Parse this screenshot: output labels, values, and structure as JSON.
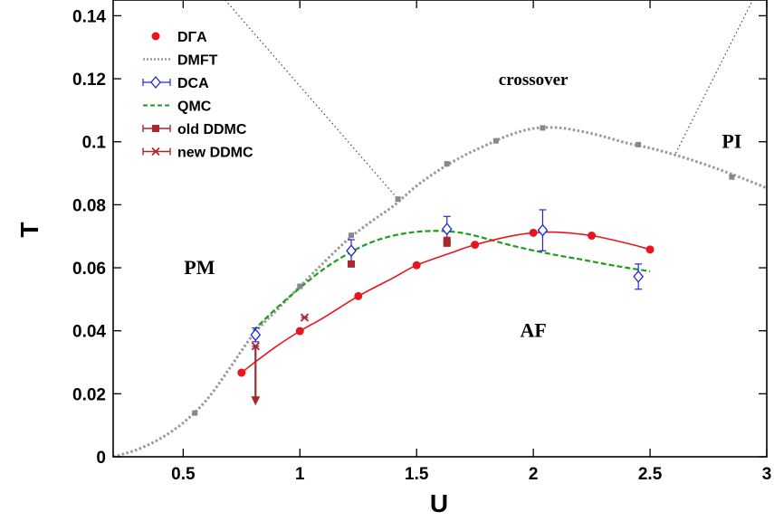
{
  "chart_data": {
    "type": "scatter",
    "title": "",
    "xlabel": "U",
    "ylabel": "T",
    "xlim": [
      0.2,
      3.0
    ],
    "ylim": [
      0,
      0.145
    ],
    "x_ticks": [
      0.5,
      1,
      1.5,
      2,
      2.5,
      3
    ],
    "x_tick_labels": [
      "0.5",
      "1",
      "1.5",
      "2",
      "2.5",
      "3"
    ],
    "y_ticks": [
      0,
      0.02,
      0.04,
      0.06,
      0.08,
      0.1,
      0.12,
      0.14
    ],
    "y_tick_labels": [
      "0",
      "0.02",
      "0.04",
      "0.06",
      "0.08",
      "0.1",
      "0.12",
      "0.14"
    ],
    "grid": false,
    "legend_position": "top-left",
    "series": [
      {
        "name": "DΓA",
        "color": "#e8141e",
        "marker": "circle",
        "x": [
          0.75,
          1.0,
          1.25,
          1.5,
          1.75,
          2.0,
          2.25,
          2.5
        ],
        "y": [
          0.0267,
          0.0399,
          0.051,
          0.0608,
          0.0673,
          0.0711,
          0.0702,
          0.0658
        ],
        "fit_x": [
          0.75,
          0.8,
          0.9,
          1.0,
          1.1,
          1.25,
          1.4,
          1.5,
          1.65,
          1.75,
          1.9,
          2.0,
          2.1,
          2.25,
          2.4,
          2.5
        ],
        "fit_y": [
          0.0267,
          0.0296,
          0.0351,
          0.0399,
          0.0441,
          0.051,
          0.0568,
          0.0608,
          0.0648,
          0.0673,
          0.07,
          0.0711,
          0.0713,
          0.0702,
          0.0678,
          0.0658
        ]
      },
      {
        "name": "DMFT",
        "color": "#999999",
        "marker": "square",
        "x": [
          0.55,
          1.0,
          1.22,
          1.42,
          1.63,
          1.84,
          2.04,
          2.45,
          2.85
        ],
        "y": [
          0.0139,
          0.0541,
          0.0703,
          0.0818,
          0.093,
          0.1003,
          0.1044,
          0.0991,
          0.0888
        ],
        "curve_x": [
          0.2,
          0.3,
          0.4,
          0.5,
          0.6,
          0.7,
          0.8,
          0.9,
          1.0,
          1.1,
          1.2,
          1.3,
          1.4,
          1.5,
          1.6,
          1.7,
          1.8,
          1.9,
          2.0,
          2.1,
          2.2,
          2.3,
          2.4,
          2.5,
          2.6,
          2.7,
          2.8,
          2.9,
          3.0
        ],
        "curve_y": [
          0,
          0.0022,
          0.0057,
          0.0108,
          0.018,
          0.0282,
          0.0388,
          0.0465,
          0.0541,
          0.0615,
          0.0686,
          0.0744,
          0.0796,
          0.086,
          0.0912,
          0.0955,
          0.099,
          0.1022,
          0.1042,
          0.1045,
          0.1034,
          0.1017,
          0.0996,
          0.098,
          0.096,
          0.0937,
          0.0911,
          0.0883,
          0.0853
        ]
      },
      {
        "name": "DCA",
        "color": "#2424e0",
        "marker": "diamond-open",
        "x": [
          0.81,
          1.22,
          1.63,
          2.04,
          2.45
        ],
        "y": [
          0.0387,
          0.0654,
          0.0723,
          0.0719,
          0.0572
        ],
        "yerr": [
          0.0022,
          0.0035,
          0.004,
          0.0065,
          0.004
        ]
      },
      {
        "name": "QMC",
        "color": "#1e9e1e",
        "line_style": "dashed",
        "x": [
          0.8,
          0.9,
          1.0,
          1.1,
          1.2,
          1.3,
          1.4,
          1.5,
          1.6,
          1.7,
          1.8,
          1.9,
          2.0,
          2.1,
          2.2,
          2.3,
          2.4,
          2.5
        ],
        "y": [
          0.04,
          0.0472,
          0.0536,
          0.0595,
          0.0642,
          0.0679,
          0.0702,
          0.0714,
          0.0717,
          0.071,
          0.0692,
          0.0672,
          0.0655,
          0.064,
          0.0627,
          0.0613,
          0.06,
          0.0589
        ]
      },
      {
        "name": "old DDMC",
        "color": "#a8282b",
        "marker": "filled-square",
        "x": [
          1.22,
          1.63,
          1.63
        ],
        "y": [
          0.0612,
          0.0687,
          0.0678
        ],
        "xerr": [
          0.012,
          0.012,
          0.012
        ]
      },
      {
        "name": "new DDMC",
        "color": "#a8282b",
        "marker": "star",
        "x": [
          0.81,
          1.02
        ],
        "y": [
          0.0351,
          0.0442
        ],
        "xerr": [
          0.015,
          0.015
        ],
        "upper_bound_arrow": {
          "x": 0.81,
          "y_from": 0.0351,
          "y_to": 0.0163
        }
      }
    ],
    "boundary_lines": [
      {
        "style": "dotted",
        "color": "#444444",
        "x": [
          0.68,
          1.42
        ],
        "y": [
          0.145,
          0.0818
        ]
      },
      {
        "style": "dotted",
        "color": "#444444",
        "x": [
          2.61,
          2.94
        ],
        "y": [
          0.0964,
          0.145
        ]
      }
    ],
    "annotations": [
      {
        "text": "crossover",
        "x": 2.0,
        "y": 0.12,
        "size": "small"
      },
      {
        "text": "PI",
        "x": 2.85,
        "y": 0.1,
        "size": "large"
      },
      {
        "text": "PM",
        "x": 0.57,
        "y": 0.06,
        "size": "large"
      },
      {
        "text": "AF",
        "x": 2.0,
        "y": 0.04,
        "size": "large"
      }
    ]
  }
}
